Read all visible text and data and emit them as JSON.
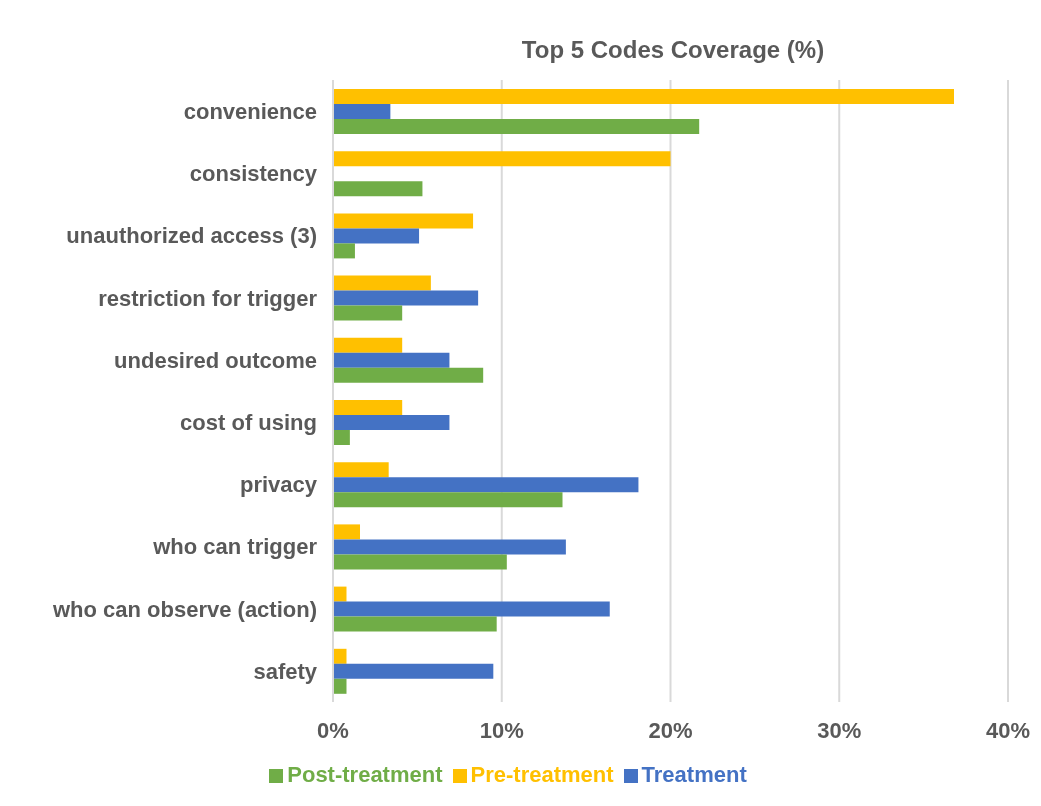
{
  "chart_data": {
    "type": "bar",
    "orientation": "horizontal",
    "title": "Top 5 Codes Coverage (%)",
    "categories": [
      "convenience",
      "consistency",
      "unauthorized access (3)",
      "restriction for trigger",
      "undesired outcome",
      "cost of using",
      "privacy",
      "who can trigger",
      "who can observe (action)",
      "safety"
    ],
    "series": [
      {
        "name": "Pre-treatment",
        "color": "#ffc000",
        "values": [
          36.8,
          20.0,
          8.3,
          5.8,
          4.1,
          4.1,
          3.3,
          1.6,
          0.8,
          0.8
        ]
      },
      {
        "name": "Treatment",
        "color": "#4472c4",
        "values": [
          3.4,
          null,
          5.1,
          8.6,
          6.9,
          6.9,
          18.1,
          13.8,
          16.4,
          9.5
        ]
      },
      {
        "name": "Post-treatment",
        "color": "#70ad47",
        "values": [
          21.7,
          5.3,
          1.3,
          4.1,
          8.9,
          1.0,
          13.6,
          10.3,
          9.7,
          0.8
        ]
      }
    ],
    "xlim": [
      0,
      40
    ],
    "xticks": [
      {
        "value": 0,
        "label": "0%"
      },
      {
        "value": 10,
        "label": "10%"
      },
      {
        "value": 20,
        "label": "20%"
      },
      {
        "value": 30,
        "label": "30%"
      },
      {
        "value": 40,
        "label": "40%"
      }
    ],
    "grid": "x",
    "legend": "bottom"
  }
}
